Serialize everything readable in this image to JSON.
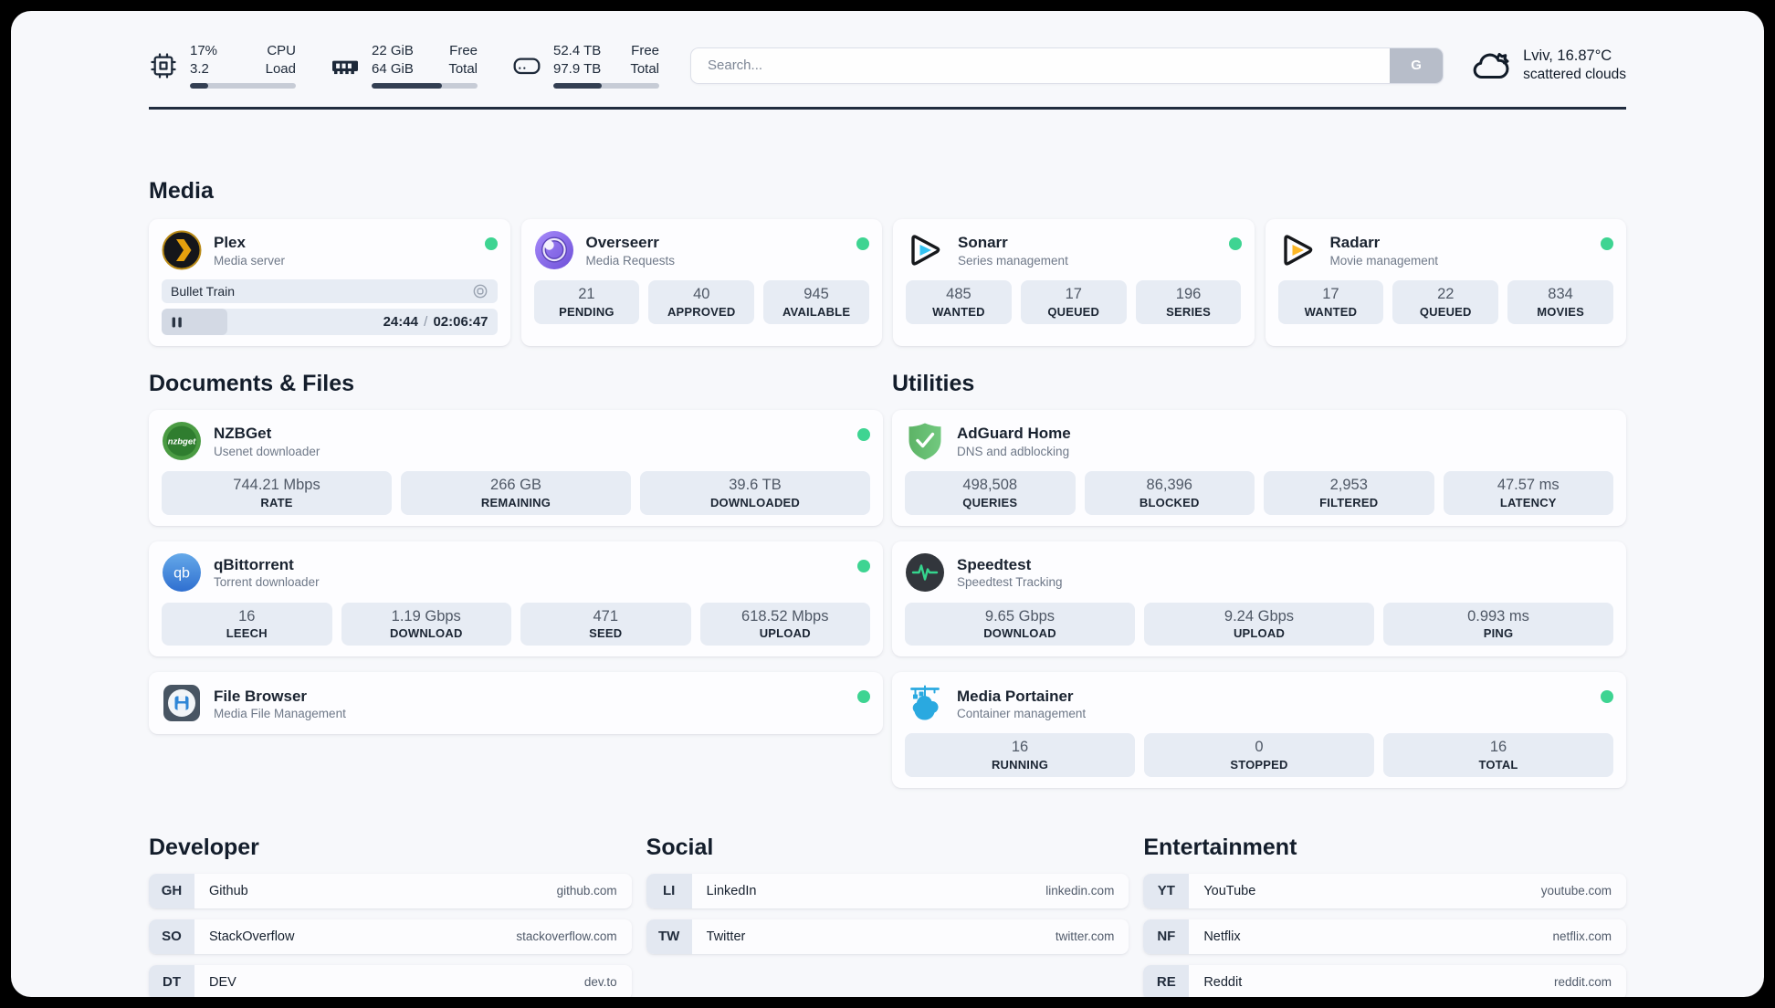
{
  "header": {
    "system_stats": [
      {
        "icon": "cpu-icon",
        "value_top": "17%",
        "value_bottom": "3.2",
        "label_top": "CPU",
        "label_bottom": "Load",
        "progress_pct": 17
      },
      {
        "icon": "memory-icon",
        "value_top": "22 GiB",
        "value_bottom": "64 GiB",
        "label_top": "Free",
        "label_bottom": "Total",
        "progress_pct": 66
      },
      {
        "icon": "disk-icon",
        "value_top": "52.4 TB",
        "value_bottom": "97.9 TB",
        "label_top": "Free",
        "label_bottom": "Total",
        "progress_pct": 46
      }
    ],
    "search": {
      "placeholder": "Search...",
      "engine_button": "G"
    },
    "weather": {
      "location": "Lviv, 16.87°C",
      "condition": "scattered clouds"
    }
  },
  "colors": {
    "status_online": "#3ed492",
    "accent_plex": "#e5a00d",
    "accent_sonarr": "#33c2f2",
    "accent_radarr": "#fcb726"
  },
  "sections": {
    "media": {
      "title": "Media",
      "apps": [
        {
          "name": "Plex",
          "subtitle": "Media server",
          "icon": "plex-icon",
          "online": true,
          "media_player": {
            "title": "Bullet Train",
            "elapsed": "24:44",
            "separator": "/",
            "total": "02:06:47",
            "progress_pct": 19.5,
            "state": "paused"
          }
        },
        {
          "name": "Overseerr",
          "subtitle": "Media Requests",
          "icon": "overseerr-icon",
          "online": true,
          "stats": [
            {
              "value": "21",
              "label": "PENDING"
            },
            {
              "value": "40",
              "label": "APPROVED"
            },
            {
              "value": "945",
              "label": "AVAILABLE"
            }
          ]
        },
        {
          "name": "Sonarr",
          "subtitle": "Series management",
          "icon": "sonarr-icon",
          "online": true,
          "stats": [
            {
              "value": "485",
              "label": "WANTED"
            },
            {
              "value": "17",
              "label": "QUEUED"
            },
            {
              "value": "196",
              "label": "SERIES"
            }
          ]
        },
        {
          "name": "Radarr",
          "subtitle": "Movie management",
          "icon": "radarr-icon",
          "online": true,
          "stats": [
            {
              "value": "17",
              "label": "WANTED"
            },
            {
              "value": "22",
              "label": "QUEUED"
            },
            {
              "value": "834",
              "label": "MOVIES"
            }
          ]
        }
      ]
    },
    "documents": {
      "title": "Documents & Files",
      "apps": [
        {
          "name": "NZBGet",
          "subtitle": "Usenet downloader",
          "icon": "nzbget-icon",
          "online": true,
          "stats": [
            {
              "value": "744.21 Mbps",
              "label": "RATE"
            },
            {
              "value": "266 GB",
              "label": "REMAINING"
            },
            {
              "value": "39.6 TB",
              "label": "DOWNLOADED"
            }
          ]
        },
        {
          "name": "qBittorrent",
          "subtitle": "Torrent downloader",
          "icon": "qbittorrent-icon",
          "online": true,
          "stats": [
            {
              "value": "16",
              "label": "LEECH"
            },
            {
              "value": "1.19 Gbps",
              "label": "DOWNLOAD"
            },
            {
              "value": "471",
              "label": "SEED"
            },
            {
              "value": "618.52 Mbps",
              "label": "UPLOAD"
            }
          ]
        },
        {
          "name": "File Browser",
          "subtitle": "Media File Management",
          "icon": "filebrowser-icon",
          "online": true
        }
      ]
    },
    "utilities": {
      "title": "Utilities",
      "apps": [
        {
          "name": "AdGuard Home",
          "subtitle": "DNS and adblocking",
          "icon": "adguard-icon",
          "online": false,
          "stats": [
            {
              "value": "498,508",
              "label": "QUERIES"
            },
            {
              "value": "86,396",
              "label": "BLOCKED"
            },
            {
              "value": "2,953",
              "label": "FILTERED"
            },
            {
              "value": "47.57 ms",
              "label": "LATENCY"
            }
          ]
        },
        {
          "name": "Speedtest",
          "subtitle": "Speedtest Tracking",
          "icon": "speedtest-icon",
          "online": false,
          "stats": [
            {
              "value": "9.65 Gbps",
              "label": "DOWNLOAD"
            },
            {
              "value": "9.24 Gbps",
              "label": "UPLOAD"
            },
            {
              "value": "0.993 ms",
              "label": "PING"
            }
          ]
        },
        {
          "name": "Media Portainer",
          "subtitle": "Container management",
          "icon": "portainer-icon",
          "online": true,
          "stats": [
            {
              "value": "16",
              "label": "RUNNING"
            },
            {
              "value": "0",
              "label": "STOPPED"
            },
            {
              "value": "16",
              "label": "TOTAL"
            }
          ]
        }
      ]
    }
  },
  "link_sections": [
    {
      "title": "Developer",
      "links": [
        {
          "code": "GH",
          "name": "Github",
          "domain": "github.com"
        },
        {
          "code": "SO",
          "name": "StackOverflow",
          "domain": "stackoverflow.com"
        },
        {
          "code": "DT",
          "name": "DEV",
          "domain": "dev.to"
        }
      ]
    },
    {
      "title": "Social",
      "links": [
        {
          "code": "LI",
          "name": "LinkedIn",
          "domain": "linkedin.com"
        },
        {
          "code": "TW",
          "name": "Twitter",
          "domain": "twitter.com"
        }
      ]
    },
    {
      "title": "Entertainment",
      "links": [
        {
          "code": "YT",
          "name": "YouTube",
          "domain": "youtube.com"
        },
        {
          "code": "NF",
          "name": "Netflix",
          "domain": "netflix.com"
        },
        {
          "code": "RE",
          "name": "Reddit",
          "domain": "reddit.com"
        }
      ]
    }
  ]
}
